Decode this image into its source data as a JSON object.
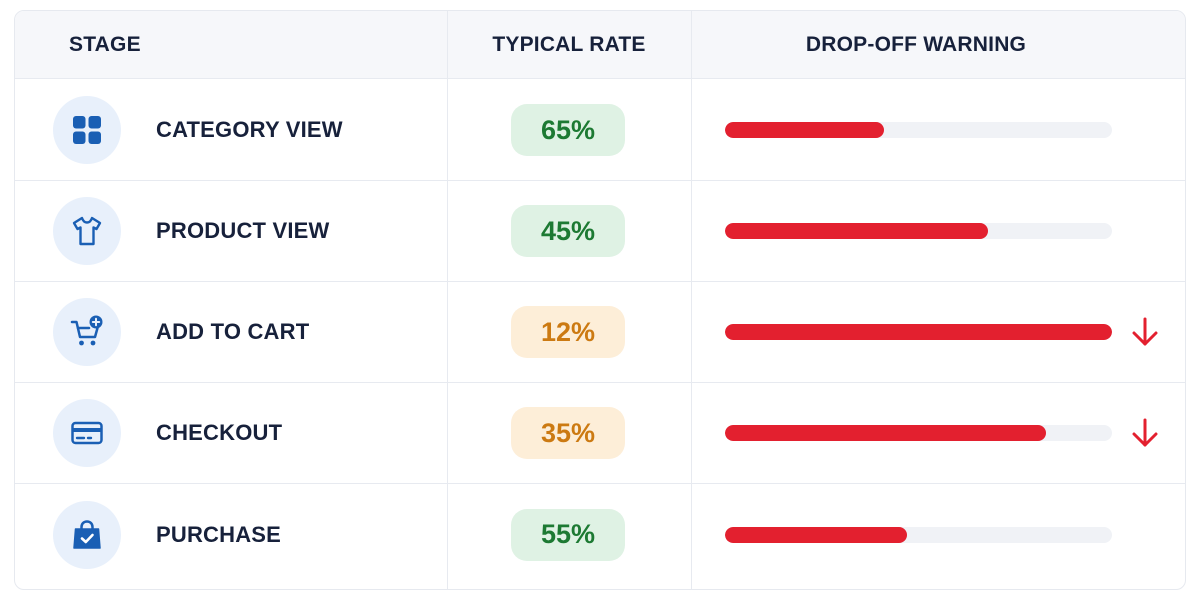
{
  "headers": {
    "stage": "STAGE",
    "rate": "TYPICAL RATE",
    "dropoff": "DROP-OFF WARNING"
  },
  "colors": {
    "accent": "#1a5fb4",
    "good_bg": "#dff2e4",
    "good_text": "#1d7a33",
    "warn_bg": "#fdeed8",
    "warn_text": "#cc7a12",
    "bar": "#e3202f"
  },
  "rows": [
    {
      "icon": "grid-icon",
      "label": "CATEGORY VIEW",
      "rate": "65%",
      "rate_status": "good",
      "dropoff_fraction": 0.41,
      "alert": false
    },
    {
      "icon": "tshirt-icon",
      "label": "PRODUCT VIEW",
      "rate": "45%",
      "rate_status": "good",
      "dropoff_fraction": 0.68,
      "alert": false
    },
    {
      "icon": "cart-plus-icon",
      "label": "ADD TO CART",
      "rate": "12%",
      "rate_status": "warn",
      "dropoff_fraction": 1.0,
      "alert": true,
      "alert_icon": "arrow-down-icon"
    },
    {
      "icon": "credit-card-icon",
      "label": "CHECKOUT",
      "rate": "35%",
      "rate_status": "warn",
      "dropoff_fraction": 0.83,
      "alert": true,
      "alert_icon": "arrow-down-icon"
    },
    {
      "icon": "shopping-bag-check-icon",
      "label": "PURCHASE",
      "rate": "55%",
      "rate_status": "good",
      "dropoff_fraction": 0.47,
      "alert": false
    }
  ]
}
